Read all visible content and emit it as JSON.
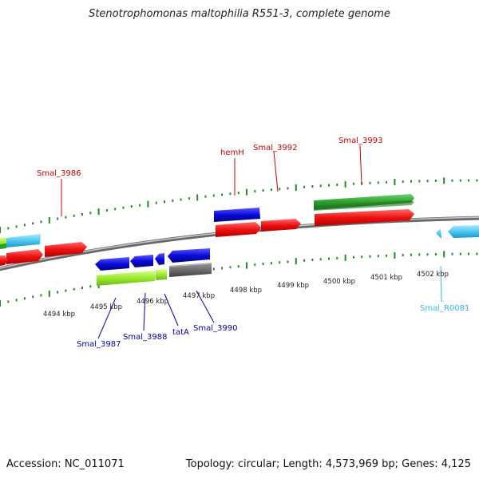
{
  "title": "Stenotrophomonas maltophilia R551-3, complete genome",
  "footer": {
    "accession": "Accession: NC_011071",
    "summary": "Topology: circular; Length: 4,573,969 bp; Genes: 4,125"
  },
  "colors": {
    "gene_label_top": "#cc0000",
    "gene_label_bottom": "#0000aa",
    "rna_label": "#33b5e5",
    "backbone": "#808080",
    "tick": "#228b22",
    "red": "#ee1111",
    "blue": "#0b0bdd",
    "green": "#2e9e2e",
    "lime": "#9bea2e",
    "cyan": "#4ec8f0",
    "gray": "#6e6e6e"
  },
  "scale": {
    "ticks": [
      {
        "label": "4494 kbp"
      },
      {
        "label": "4495 kbp"
      },
      {
        "label": "4496 kbp"
      },
      {
        "label": "4497 kbp"
      },
      {
        "label": "4498 kbp"
      },
      {
        "label": "4499 kbp"
      },
      {
        "label": "4500 kbp"
      },
      {
        "label": "4501 kbp"
      },
      {
        "label": "4502 kbp"
      }
    ]
  },
  "labels": {
    "top": [
      "Smal_3986",
      "hemH",
      "Smal_3992",
      "Smal_3993"
    ],
    "bottom": [
      "Smal_3987",
      "Smal_3988",
      "tatA",
      "Smal_3990",
      "Smal_R0081"
    ]
  },
  "features": [
    {
      "track": "plus-2",
      "color": "green",
      "label": "Smal_3993"
    },
    {
      "track": "plus-1",
      "color": "blue",
      "label": "hemH"
    },
    {
      "track": "plus-1",
      "color": "red",
      "label": "hemH"
    },
    {
      "track": "plus-1",
      "color": "red",
      "label": "Smal_3992"
    },
    {
      "track": "plus-1",
      "color": "red",
      "label": "Smal_3993"
    },
    {
      "track": "plus-1",
      "color": "red",
      "label": "Smal_3986"
    },
    {
      "track": "minus-1",
      "color": "blue",
      "label": "Smal_3987"
    },
    {
      "track": "minus-1",
      "color": "blue",
      "label": "Smal_3988"
    },
    {
      "track": "minus-1",
      "color": "blue",
      "label": "tatA"
    },
    {
      "track": "minus-1",
      "color": "blue",
      "label": "Smal_3990"
    },
    {
      "track": "minus-2",
      "color": "lime",
      "label": "Smal_3987"
    },
    {
      "track": "minus-2",
      "color": "gray",
      "label": "Smal_3990"
    },
    {
      "track": "minus-1",
      "color": "cyan",
      "label": "Smal_R0081"
    }
  ]
}
